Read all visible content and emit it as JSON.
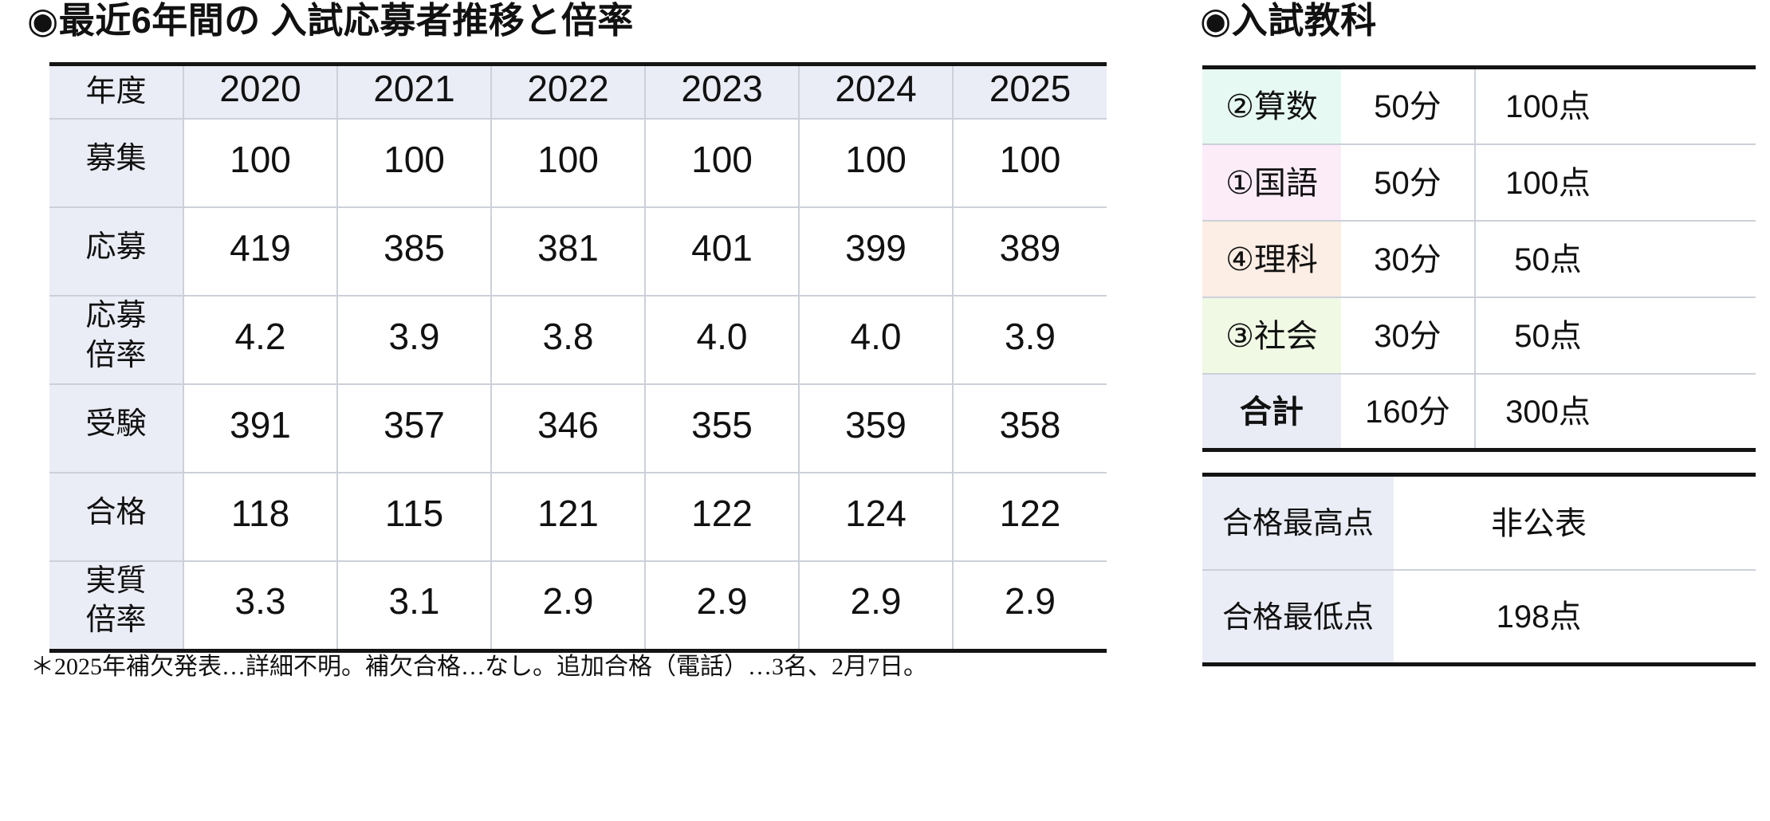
{
  "left_section": {
    "title": "◉最近6年間の 入試応募者推移と倍率",
    "table": {
      "header": [
        "年度",
        "2020",
        "2021",
        "2022",
        "2023",
        "2024",
        "2025"
      ],
      "rows": [
        {
          "label": "募集",
          "values": [
            "100",
            "100",
            "100",
            "100",
            "100",
            "100"
          ]
        },
        {
          "label": "応募",
          "values": [
            "419",
            "385",
            "381",
            "401",
            "399",
            "389"
          ]
        },
        {
          "label": "応募倍率",
          "values": [
            "4.2",
            "3.9",
            "3.8",
            "4.0",
            "4.0",
            "3.9"
          ]
        },
        {
          "label": "受験",
          "values": [
            "391",
            "357",
            "346",
            "355",
            "359",
            "358"
          ]
        },
        {
          "label": "合格",
          "values": [
            "118",
            "115",
            "121",
            "122",
            "124",
            "122"
          ]
        },
        {
          "label": "実質倍率",
          "values": [
            "3.3",
            "3.1",
            "2.9",
            "2.9",
            "2.9",
            "2.9"
          ]
        }
      ]
    },
    "footnote": "＊2025年補欠発表…詳細不明。補欠合格…なし。追加合格（電話）…3名、2月7日。"
  },
  "right_section": {
    "title": "◉入試教科",
    "subjects_table": {
      "rows": [
        {
          "label": "②算数",
          "time": "50分",
          "points": "100点",
          "color": "#e6f9f2"
        },
        {
          "label": "①国語",
          "time": "50分",
          "points": "100点",
          "color": "#fcecf8"
        },
        {
          "label": "④理科",
          "time": "30分",
          "points": "50点",
          "color": "#fdeee5"
        },
        {
          "label": "③社会",
          "time": "30分",
          "points": "50点",
          "color": "#f0f9e4"
        },
        {
          "label": "合計",
          "time": "160分",
          "points": "300点",
          "color": "#e9ecf4"
        }
      ]
    },
    "scores_table": {
      "rows": [
        {
          "label": "合格最高点",
          "value": "非公表"
        },
        {
          "label": "合格最低点",
          "value": "198点"
        }
      ]
    }
  },
  "colors": {
    "page-bg": "#ffffff",
    "text": "#111111",
    "label-bg": "#eaedf5",
    "border-dark": "#141414",
    "border-light": "#ccd0d9"
  }
}
